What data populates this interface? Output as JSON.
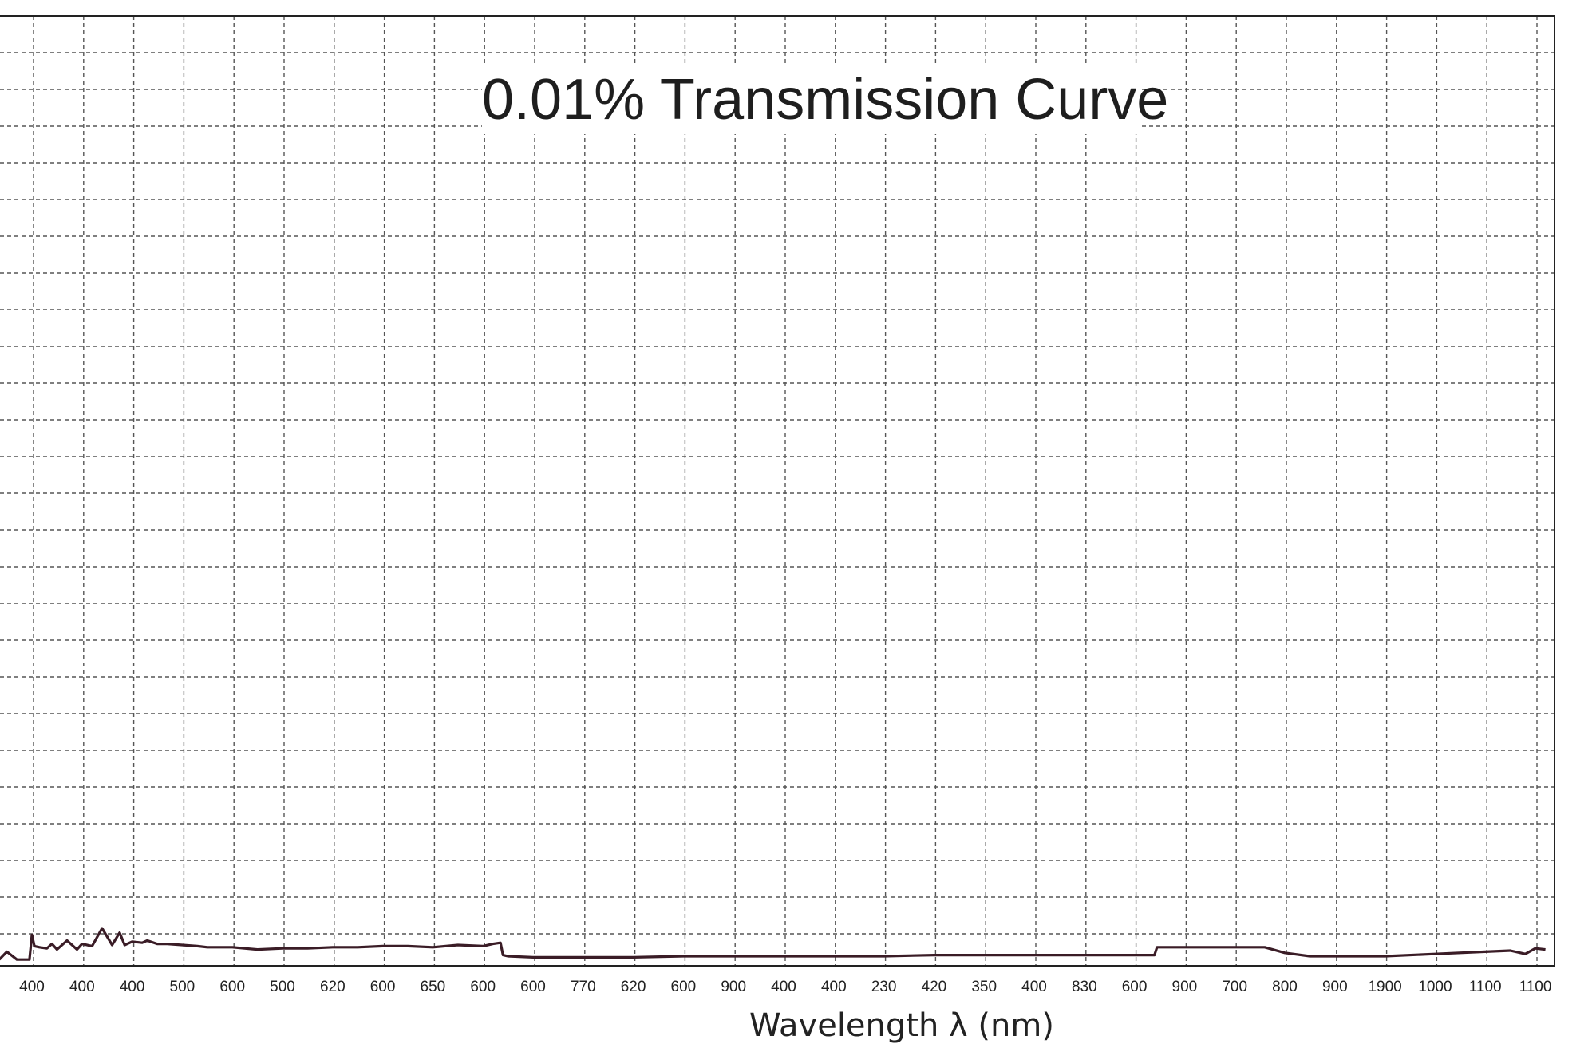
{
  "chart_data": {
    "type": "line",
    "title": "0.01% Transmission Curve",
    "xlabel": "Wavelength λ (nm)",
    "ylabel": "",
    "x_tick_labels": [
      "400",
      "400",
      "400",
      "500",
      "600",
      "500",
      "620",
      "600",
      "650",
      "600",
      "600",
      "770",
      "620",
      "600",
      "900",
      "400",
      "400",
      "230",
      "420",
      "350",
      "400",
      "830",
      "600",
      "900",
      "700",
      "800",
      "900",
      "1900",
      "1000",
      "1100",
      "1100"
    ],
    "grid": true,
    "series": [
      {
        "color": "#3a1c26",
        "x_index": [
          -0.65,
          -0.5,
          -0.3,
          -0.05,
          0.0,
          0.05,
          0.15,
          0.3,
          0.4,
          0.5,
          0.7,
          0.9,
          1.0,
          1.2,
          1.4,
          1.6,
          1.75,
          1.85,
          2.0,
          2.2,
          2.3,
          2.5,
          2.7,
          3.0,
          3.3,
          3.5,
          4.0,
          4.5,
          5.0,
          5.5,
          6.0,
          6.5,
          7.0,
          7.5,
          8.0,
          8.5,
          9.0,
          9.2,
          9.35,
          9.4,
          9.5,
          10.0,
          11.0,
          12.0,
          13.0,
          14.0,
          15.0,
          16.0,
          17.0,
          18.0,
          19.0,
          20.0,
          21.0,
          22.0,
          22.4,
          22.45,
          23.0,
          24.0,
          24.3,
          24.6,
          25.0,
          25.5,
          26.0,
          27.0,
          28.0,
          29.0,
          29.5,
          29.8,
          30.0,
          30.2
        ],
        "values": [
          0.1,
          0.45,
          0.1,
          0.1,
          1.2,
          0.7,
          0.65,
          0.6,
          0.8,
          0.55,
          0.95,
          0.55,
          0.8,
          0.7,
          1.5,
          0.75,
          1.3,
          0.75,
          0.9,
          0.85,
          0.95,
          0.8,
          0.8,
          0.75,
          0.7,
          0.65,
          0.65,
          0.55,
          0.6,
          0.6,
          0.65,
          0.65,
          0.7,
          0.7,
          0.65,
          0.75,
          0.7,
          0.8,
          0.85,
          0.3,
          0.25,
          0.2,
          0.2,
          0.2,
          0.25,
          0.25,
          0.25,
          0.25,
          0.25,
          0.3,
          0.3,
          0.3,
          0.3,
          0.3,
          0.3,
          0.65,
          0.65,
          0.65,
          0.65,
          0.65,
          0.4,
          0.25,
          0.25,
          0.25,
          0.35,
          0.45,
          0.5,
          0.35,
          0.6,
          0.55
        ]
      }
    ]
  }
}
